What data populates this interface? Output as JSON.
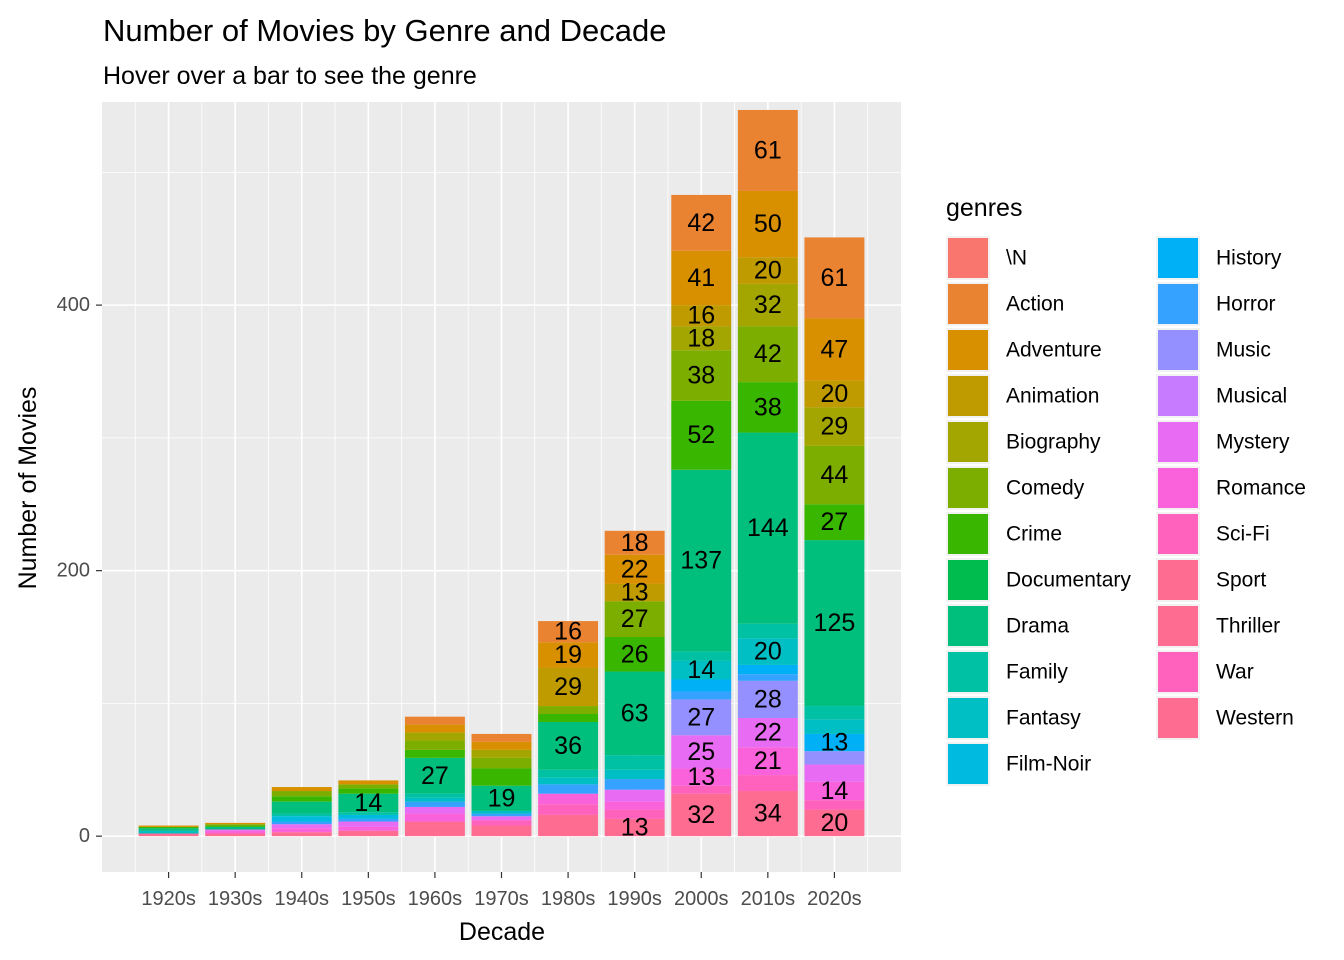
{
  "chart_data": {
    "type": "bar",
    "stacked": true,
    "title": "Number of Movies by Genre and Decade",
    "subtitle": "Hover over a bar to see the genre",
    "xlabel": "Decade",
    "ylabel": "Number of Movies",
    "ylim": [
      -27,
      553
    ],
    "yticks": [
      0,
      200,
      400
    ],
    "grid": true,
    "legend_title": "genres",
    "legend_position": "right",
    "categories": [
      "1920s",
      "1930s",
      "1940s",
      "1950s",
      "1960s",
      "1970s",
      "1980s",
      "1990s",
      "2000s",
      "2010s",
      "2020s"
    ],
    "genres": [
      {
        "name": "\\N",
        "color": "#F8766D"
      },
      {
        "name": "Action",
        "color": "#EA8331"
      },
      {
        "name": "Adventure",
        "color": "#D89000"
      },
      {
        "name": "Animation",
        "color": "#C09B00"
      },
      {
        "name": "Biography",
        "color": "#A3A500"
      },
      {
        "name": "Comedy",
        "color": "#7CAE00"
      },
      {
        "name": "Crime",
        "color": "#39B600"
      },
      {
        "name": "Documentary",
        "color": "#00BB4E"
      },
      {
        "name": "Drama",
        "color": "#00BF7D"
      },
      {
        "name": "Family",
        "color": "#00C1A3"
      },
      {
        "name": "Fantasy",
        "color": "#00BFC4"
      },
      {
        "name": "Film-Noir",
        "color": "#00BAE0"
      },
      {
        "name": "History",
        "color": "#00B0F6"
      },
      {
        "name": "Horror",
        "color": "#35A2FF"
      },
      {
        "name": "Music",
        "color": "#9590FF"
      },
      {
        "name": "Musical",
        "color": "#C77CFF"
      },
      {
        "name": "Mystery",
        "color": "#E76BF3"
      },
      {
        "name": "Romance",
        "color": "#FA62DB"
      },
      {
        "name": "Sci-Fi",
        "color": "#FF62BC"
      },
      {
        "name": "Sport",
        "color": "#FF6C91"
      },
      {
        "name": "Thriller",
        "color": "#FF6C91"
      },
      {
        "name": "War",
        "color": "#FF62BC"
      },
      {
        "name": "Western",
        "color": "#FF6C91"
      }
    ],
    "stacks": [
      {
        "category": "1920s",
        "segments": [
          {
            "genre": "Thriller",
            "value": 2
          },
          {
            "genre": "Fantasy",
            "value": 2
          },
          {
            "genre": "Drama",
            "value": 2
          },
          {
            "genre": "Crime",
            "value": 1
          },
          {
            "genre": "Adventure",
            "value": 1
          }
        ]
      },
      {
        "category": "1930s",
        "segments": [
          {
            "genre": "Thriller",
            "value": 2
          },
          {
            "genre": "Romance",
            "value": 2
          },
          {
            "genre": "Mystery",
            "value": 1
          },
          {
            "genre": "Drama",
            "value": 2
          },
          {
            "genre": "Crime",
            "value": 1
          },
          {
            "genre": "Comedy",
            "value": 1
          },
          {
            "genre": "Adventure",
            "value": 1
          }
        ]
      },
      {
        "category": "1940s",
        "segments": [
          {
            "genre": "Thriller",
            "value": 3
          },
          {
            "genre": "Romance",
            "value": 3
          },
          {
            "genre": "Mystery",
            "value": 3
          },
          {
            "genre": "Horror",
            "value": 2
          },
          {
            "genre": "Film-Noir",
            "value": 4
          },
          {
            "genre": "Family",
            "value": 2
          },
          {
            "genre": "Drama",
            "value": 9
          },
          {
            "genre": "Crime",
            "value": 4
          },
          {
            "genre": "Comedy",
            "value": 4
          },
          {
            "genre": "Adventure",
            "value": 3
          }
        ]
      },
      {
        "category": "1950s",
        "segments": [
          {
            "genre": "Thriller",
            "value": 4
          },
          {
            "genre": "Romance",
            "value": 3
          },
          {
            "genre": "Mystery",
            "value": 4
          },
          {
            "genre": "Horror",
            "value": 2
          },
          {
            "genre": "Film-Noir",
            "value": 3
          },
          {
            "genre": "Family",
            "value": 2
          },
          {
            "genre": "Drama",
            "value": 14
          },
          {
            "genre": "Crime",
            "value": 4
          },
          {
            "genre": "Comedy",
            "value": 3
          },
          {
            "genre": "Adventure",
            "value": 3
          }
        ]
      },
      {
        "category": "1960s",
        "segments": [
          {
            "genre": "Thriller",
            "value": 8
          },
          {
            "genre": "Sport",
            "value": 3
          },
          {
            "genre": "Romance",
            "value": 6
          },
          {
            "genre": "Mystery",
            "value": 5
          },
          {
            "genre": "Horror",
            "value": 4
          },
          {
            "genre": "Fantasy",
            "value": 3
          },
          {
            "genre": "Family",
            "value": 3
          },
          {
            "genre": "Drama",
            "value": 27
          },
          {
            "genre": "Crime",
            "value": 6
          },
          {
            "genre": "Comedy",
            "value": 7
          },
          {
            "genre": "Biography",
            "value": 6
          },
          {
            "genre": "Adventure",
            "value": 6
          },
          {
            "genre": "Action",
            "value": 6
          }
        ]
      },
      {
        "category": "1970s",
        "segments": [
          {
            "genre": "Thriller",
            "value": 8
          },
          {
            "genre": "Sci-Fi",
            "value": 4
          },
          {
            "genre": "Mystery",
            "value": 3
          },
          {
            "genre": "Horror",
            "value": 2
          },
          {
            "genre": "Fantasy",
            "value": 2
          },
          {
            "genre": "Drama",
            "value": 19
          },
          {
            "genre": "Crime",
            "value": 13
          },
          {
            "genre": "Comedy",
            "value": 8
          },
          {
            "genre": "Biography",
            "value": 6
          },
          {
            "genre": "Adventure",
            "value": 6
          },
          {
            "genre": "Action",
            "value": 6
          }
        ]
      },
      {
        "category": "1980s",
        "segments": [
          {
            "genre": "Thriller",
            "value": 16
          },
          {
            "genre": "Sci-Fi",
            "value": 8
          },
          {
            "genre": "Romance",
            "value": 8
          },
          {
            "genre": "Horror",
            "value": 7
          },
          {
            "genre": "Fantasy",
            "value": 5
          },
          {
            "genre": "Family",
            "value": 6
          },
          {
            "genre": "Drama",
            "value": 36
          },
          {
            "genre": "Crime",
            "value": 6
          },
          {
            "genre": "Comedy",
            "value": 6
          },
          {
            "genre": "Animation",
            "value": 29
          },
          {
            "genre": "Adventure",
            "value": 19
          },
          {
            "genre": "Action",
            "value": 16
          }
        ]
      },
      {
        "category": "1990s",
        "segments": [
          {
            "genre": "Thriller",
            "value": 13
          },
          {
            "genre": "Sci-Fi",
            "value": 7
          },
          {
            "genre": "Romance",
            "value": 6
          },
          {
            "genre": "Mystery",
            "value": 9
          },
          {
            "genre": "Horror",
            "value": 8
          },
          {
            "genre": "Fantasy",
            "value": 7
          },
          {
            "genre": "Family",
            "value": 11
          },
          {
            "genre": "Drama",
            "value": 63
          },
          {
            "genre": "Crime",
            "value": 26
          },
          {
            "genre": "Comedy",
            "value": 27
          },
          {
            "genre": "Animation",
            "value": 13
          },
          {
            "genre": "Adventure",
            "value": 22
          },
          {
            "genre": "Action",
            "value": 18
          }
        ]
      },
      {
        "category": "2000s",
        "segments": [
          {
            "genre": "Thriller",
            "value": 32
          },
          {
            "genre": "Sci-Fi",
            "value": 6
          },
          {
            "genre": "Romance",
            "value": 13
          },
          {
            "genre": "Mystery",
            "value": 25
          },
          {
            "genre": "Music",
            "value": 27
          },
          {
            "genre": "Horror",
            "value": 6
          },
          {
            "genre": "History",
            "value": 9
          },
          {
            "genre": "Fantasy",
            "value": 14
          },
          {
            "genre": "Family",
            "value": 7
          },
          {
            "genre": "Drama",
            "value": 137
          },
          {
            "genre": "Crime",
            "value": 52
          },
          {
            "genre": "Comedy",
            "value": 38
          },
          {
            "genre": "Biography",
            "value": 18
          },
          {
            "genre": "Animation",
            "value": 16
          },
          {
            "genre": "Adventure",
            "value": 41
          },
          {
            "genre": "Action",
            "value": 42
          }
        ]
      },
      {
        "category": "2010s",
        "segments": [
          {
            "genre": "Thriller",
            "value": 34
          },
          {
            "genre": "Sci-Fi",
            "value": 12
          },
          {
            "genre": "Romance",
            "value": 21
          },
          {
            "genre": "Mystery",
            "value": 22
          },
          {
            "genre": "Music",
            "value": 28
          },
          {
            "genre": "Horror",
            "value": 5
          },
          {
            "genre": "History",
            "value": 7
          },
          {
            "genre": "Fantasy",
            "value": 20
          },
          {
            "genre": "Family",
            "value": 11
          },
          {
            "genre": "Drama",
            "value": 144
          },
          {
            "genre": "Crime",
            "value": 38
          },
          {
            "genre": "Comedy",
            "value": 42
          },
          {
            "genre": "Biography",
            "value": 32
          },
          {
            "genre": "Animation",
            "value": 20
          },
          {
            "genre": "Adventure",
            "value": 50
          },
          {
            "genre": "Action",
            "value": 61
          }
        ]
      },
      {
        "category": "2020s",
        "segments": [
          {
            "genre": "Thriller",
            "value": 20
          },
          {
            "genre": "Sci-Fi",
            "value": 7
          },
          {
            "genre": "Romance",
            "value": 14
          },
          {
            "genre": "Mystery",
            "value": 13
          },
          {
            "genre": "Music",
            "value": 10
          },
          {
            "genre": "History",
            "value": 13
          },
          {
            "genre": "Fantasy",
            "value": 11
          },
          {
            "genre": "Family",
            "value": 10
          },
          {
            "genre": "Drama",
            "value": 125
          },
          {
            "genre": "Crime",
            "value": 27
          },
          {
            "genre": "Comedy",
            "value": 44
          },
          {
            "genre": "Biography",
            "value": 29
          },
          {
            "genre": "Animation",
            "value": 20
          },
          {
            "genre": "Adventure",
            "value": 47
          },
          {
            "genre": "Action",
            "value": 61
          }
        ]
      }
    ],
    "data_labels": [
      {
        "category": "1950s",
        "genre": "Drama",
        "text": "14"
      },
      {
        "category": "1960s",
        "genre": "Drama",
        "text": "27"
      },
      {
        "category": "1970s",
        "genre": "Drama",
        "text": "19"
      },
      {
        "category": "1980s",
        "genre": "Action",
        "text": "16"
      },
      {
        "category": "1980s",
        "genre": "Adventure",
        "text": "19"
      },
      {
        "category": "1980s",
        "genre": "Animation",
        "text": "29"
      },
      {
        "category": "1980s",
        "genre": "Drama",
        "text": "36"
      },
      {
        "category": "1990s",
        "genre": "Action",
        "text": "18"
      },
      {
        "category": "1990s",
        "genre": "Adventure",
        "text": "22"
      },
      {
        "category": "1990s",
        "genre": "Animation",
        "text": "13"
      },
      {
        "category": "1990s",
        "genre": "Comedy",
        "text": "27"
      },
      {
        "category": "1990s",
        "genre": "Crime",
        "text": "26"
      },
      {
        "category": "1990s",
        "genre": "Drama",
        "text": "63"
      },
      {
        "category": "1990s",
        "genre": "Thriller",
        "text": "13"
      },
      {
        "category": "2000s",
        "genre": "Action",
        "text": "42"
      },
      {
        "category": "2000s",
        "genre": "Adventure",
        "text": "41"
      },
      {
        "category": "2000s",
        "genre": "Animation",
        "text": "16"
      },
      {
        "category": "2000s",
        "genre": "Biography",
        "text": "18"
      },
      {
        "category": "2000s",
        "genre": "Comedy",
        "text": "38"
      },
      {
        "category": "2000s",
        "genre": "Crime",
        "text": "52"
      },
      {
        "category": "2000s",
        "genre": "Drama",
        "text": "137"
      },
      {
        "category": "2000s",
        "genre": "Fantasy",
        "text": "14"
      },
      {
        "category": "2000s",
        "genre": "Music",
        "text": "27"
      },
      {
        "category": "2000s",
        "genre": "Mystery",
        "text": "25"
      },
      {
        "category": "2000s",
        "genre": "Romance",
        "text": "13"
      },
      {
        "category": "2000s",
        "genre": "Thriller",
        "text": "32"
      },
      {
        "category": "2010s",
        "genre": "Action",
        "text": "61"
      },
      {
        "category": "2010s",
        "genre": "Adventure",
        "text": "50"
      },
      {
        "category": "2010s",
        "genre": "Animation",
        "text": "20"
      },
      {
        "category": "2010s",
        "genre": "Biography",
        "text": "32"
      },
      {
        "category": "2010s",
        "genre": "Comedy",
        "text": "42"
      },
      {
        "category": "2010s",
        "genre": "Crime",
        "text": "38"
      },
      {
        "category": "2010s",
        "genre": "Drama",
        "text": "144"
      },
      {
        "category": "2010s",
        "genre": "Fantasy",
        "text": "20"
      },
      {
        "category": "2010s",
        "genre": "Music",
        "text": "28"
      },
      {
        "category": "2010s",
        "genre": "Mystery",
        "text": "22"
      },
      {
        "category": "2010s",
        "genre": "Romance",
        "text": "21"
      },
      {
        "category": "2010s",
        "genre": "Thriller",
        "text": "34"
      },
      {
        "category": "2020s",
        "genre": "Action",
        "text": "61"
      },
      {
        "category": "2020s",
        "genre": "Adventure",
        "text": "47"
      },
      {
        "category": "2020s",
        "genre": "Animation",
        "text": "20"
      },
      {
        "category": "2020s",
        "genre": "Biography",
        "text": "29"
      },
      {
        "category": "2020s",
        "genre": "Comedy",
        "text": "44"
      },
      {
        "category": "2020s",
        "genre": "Crime",
        "text": "27"
      },
      {
        "category": "2020s",
        "genre": "Drama",
        "text": "125"
      },
      {
        "category": "2020s",
        "genre": "History",
        "text": "13"
      },
      {
        "category": "2020s",
        "genre": "Romance",
        "text": "14"
      },
      {
        "category": "2020s",
        "genre": "Thriller",
        "text": "20"
      }
    ]
  }
}
